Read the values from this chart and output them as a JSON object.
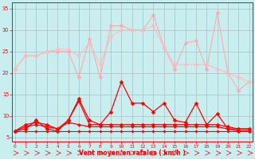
{
  "title": "",
  "xlabel": "Vent moyen/en rafales ( km/h )",
  "background_color": "#c8eef0",
  "grid_color": "#aaaaaa",
  "x": [
    0,
    1,
    2,
    3,
    4,
    5,
    6,
    7,
    8,
    9,
    10,
    11,
    12,
    13,
    14,
    15,
    16,
    17,
    18,
    19,
    20,
    21,
    22
  ],
  "series": [
    {
      "name": "rafales_max",
      "color": "#ffaaaa",
      "linewidth": 0.8,
      "markersize": 2.5,
      "marker": "D",
      "values": [
        21,
        24,
        24,
        25,
        25,
        25,
        19,
        28,
        19,
        31,
        31,
        30,
        30,
        33.5,
        26,
        21,
        27,
        27.5,
        21,
        34,
        20,
        16,
        18
      ]
    },
    {
      "name": "rafales_moy",
      "color": "#ffbbbb",
      "linewidth": 0.8,
      "markersize": 2.5,
      "marker": "D",
      "values": [
        21,
        24,
        24,
        25,
        25.5,
        25.5,
        24,
        27,
        22,
        28.5,
        30,
        30,
        30,
        31,
        26,
        22,
        22,
        22,
        22,
        21,
        20,
        19,
        18
      ]
    },
    {
      "name": "vent_max",
      "color": "#ff0000",
      "linewidth": 0.9,
      "markersize": 2.5,
      "marker": "D",
      "values": [
        6.5,
        7,
        9,
        7,
        6.5,
        9,
        14,
        9,
        8,
        11,
        18,
        13,
        13,
        11,
        13,
        9,
        8.5,
        13,
        8,
        10.5,
        7,
        6.5,
        6.5
      ]
    },
    {
      "name": "vent_moy1",
      "color": "#ff0000",
      "linewidth": 0.9,
      "markersize": 2.5,
      "marker": "D",
      "values": [
        6.5,
        8,
        8.5,
        8,
        7,
        9,
        13.5,
        8,
        8,
        8,
        8,
        8,
        8,
        8,
        8,
        8,
        8,
        8,
        8,
        8,
        7.5,
        7,
        7
      ]
    },
    {
      "name": "vent_moy2",
      "color": "#ff0000",
      "linewidth": 0.9,
      "markersize": 2.0,
      "marker": "D",
      "values": [
        6.5,
        7.5,
        8,
        7.5,
        7,
        8.5,
        8,
        7.5,
        7.5,
        7.5,
        7.5,
        7.5,
        7.5,
        7.5,
        7.5,
        7.5,
        7.5,
        7.5,
        7.5,
        7.5,
        7,
        7,
        7
      ]
    },
    {
      "name": "vent_min",
      "color": "#ff0000",
      "linewidth": 0.8,
      "markersize": 1.8,
      "marker": "D",
      "values": [
        6.5,
        6.5,
        6.5,
        6.5,
        6.5,
        6.5,
        6.5,
        6.5,
        6.5,
        6.5,
        6.5,
        6.5,
        6.5,
        6.5,
        6.5,
        6.5,
        6.5,
        6.5,
        6.5,
        6.5,
        6.5,
        6.5,
        6.5
      ]
    }
  ],
  "xlim": [
    -0.3,
    22.3
  ],
  "ylim": [
    4,
    36.5
  ],
  "yticks": [
    5,
    10,
    15,
    20,
    25,
    30,
    35
  ],
  "xticks": [
    0,
    1,
    2,
    3,
    4,
    5,
    6,
    7,
    8,
    9,
    10,
    11,
    12,
    13,
    14,
    15,
    16,
    17,
    18,
    19,
    20,
    21,
    22
  ]
}
